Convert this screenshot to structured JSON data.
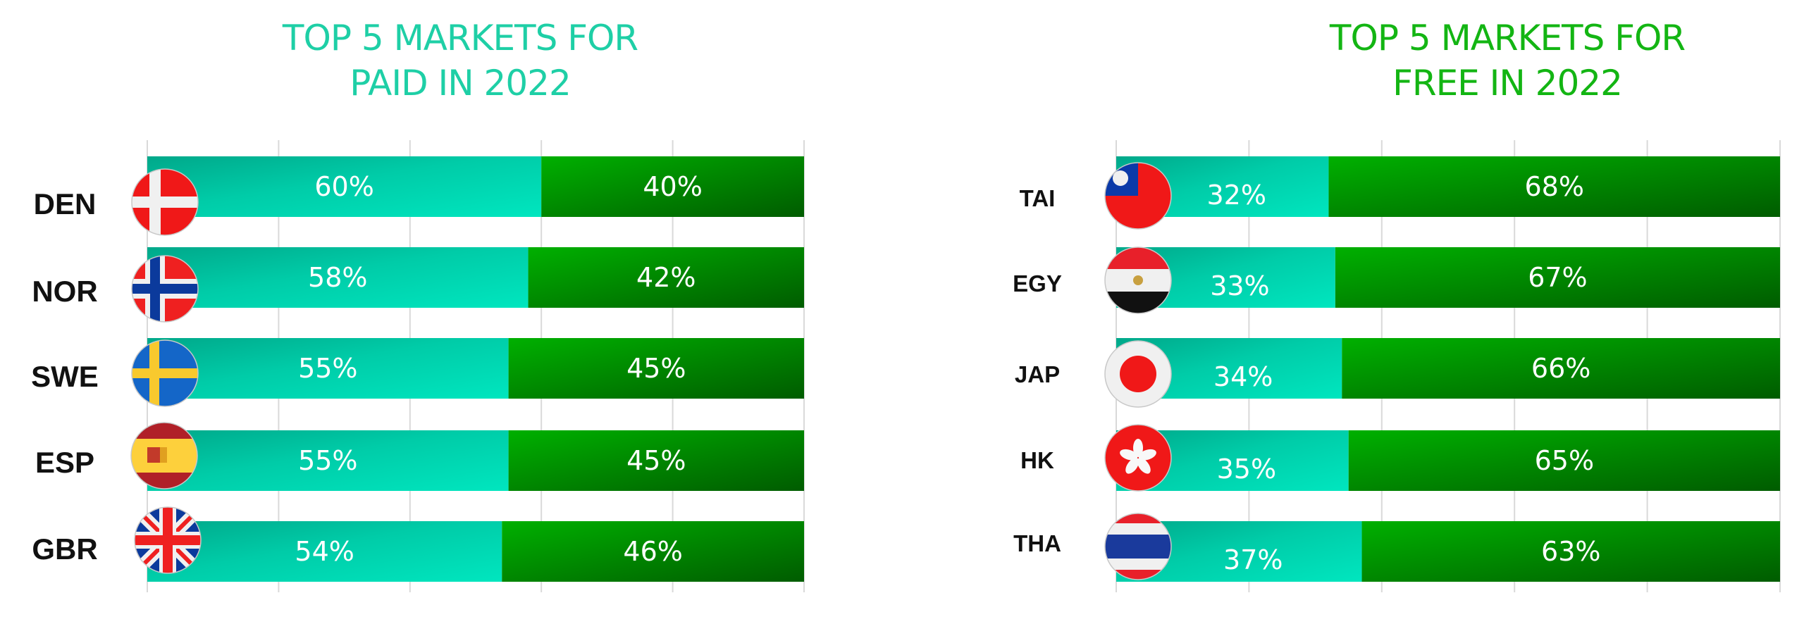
{
  "chart_data": [
    {
      "type": "bar",
      "stacked": true,
      "orientation": "horizontal",
      "title": [
        "TOP 5 MARKETS FOR",
        "PAID IN 2022"
      ],
      "title_color": "#1ecfa6",
      "categories": [
        "DEN",
        "NOR",
        "SWE",
        "ESP",
        "GBR"
      ],
      "flags": [
        "denmark",
        "norway",
        "sweden",
        "spain",
        "united-kingdom"
      ],
      "series": [
        {
          "values": [
            60,
            58,
            55,
            55,
            54
          ],
          "labels": [
            "60%",
            "58%",
            "55%",
            "55%",
            "54%"
          ],
          "color": "#00d4aa"
        },
        {
          "values": [
            40,
            42,
            45,
            45,
            46
          ],
          "labels": [
            "40%",
            "42%",
            "45%",
            "45%",
            "46%"
          ],
          "color": "#00a000"
        }
      ],
      "xlim": [
        0,
        100
      ],
      "grid": true
    },
    {
      "type": "bar",
      "stacked": true,
      "orientation": "horizontal",
      "title": [
        "TOP 5 MARKETS FOR",
        "FREE IN 2022"
      ],
      "title_color": "#13b513",
      "categories": [
        "TAI",
        "EGY",
        "JAP",
        "HK",
        "THA"
      ],
      "flags": [
        "taiwan",
        "egypt",
        "japan",
        "hong-kong",
        "thailand"
      ],
      "series": [
        {
          "values": [
            32,
            33,
            34,
            35,
            37
          ],
          "labels": [
            "32%",
            "33%",
            "34%",
            "35%",
            "37%"
          ],
          "color": "#00d4aa"
        },
        {
          "values": [
            68,
            67,
            66,
            65,
            63
          ],
          "labels": [
            "68%",
            "67%",
            "66%",
            "65%",
            "63%"
          ],
          "color": "#00a000"
        }
      ],
      "xlim": [
        0,
        100
      ],
      "grid": true
    }
  ]
}
